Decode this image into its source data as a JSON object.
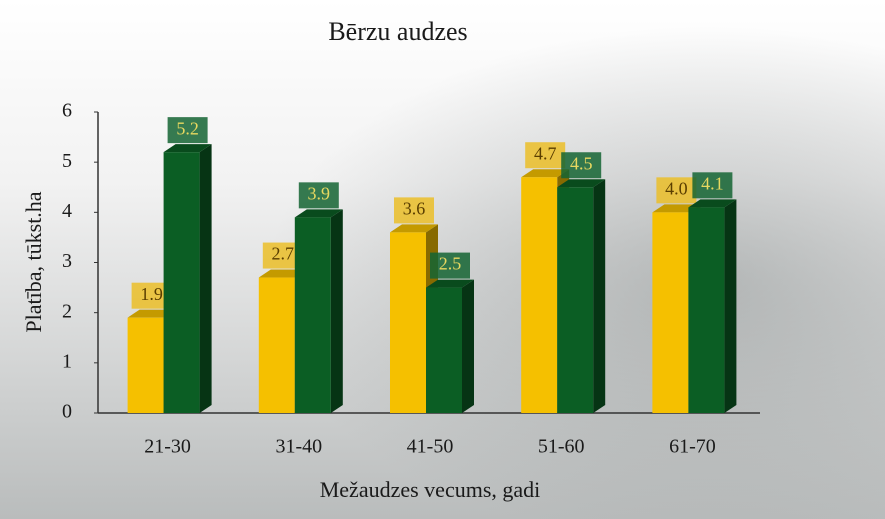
{
  "chart_data": {
    "type": "bar3d",
    "title": "Bērzu audzes",
    "x_label": "Mežaudzes vecums, gadi",
    "y_label": "Platība, tūkst.ha",
    "categories": [
      "21-30",
      "31-40",
      "41-50",
      "51-60",
      "61-70"
    ],
    "series": [
      {
        "color": "#f5c000",
        "values": [
          1.9,
          2.7,
          3.6,
          4.7,
          4.0
        ],
        "value_labels": [
          "1.9",
          "2.7",
          "3.6",
          "4.7",
          "4.0"
        ]
      },
      {
        "color": "#0b5e24",
        "values": [
          5.2,
          3.9,
          2.5,
          4.5,
          4.1
        ]
      }
    ],
    "ylim": [
      0,
      6
    ],
    "yticks": [
      0,
      1,
      2,
      3,
      4,
      5,
      6
    ],
    "grid": false
  }
}
